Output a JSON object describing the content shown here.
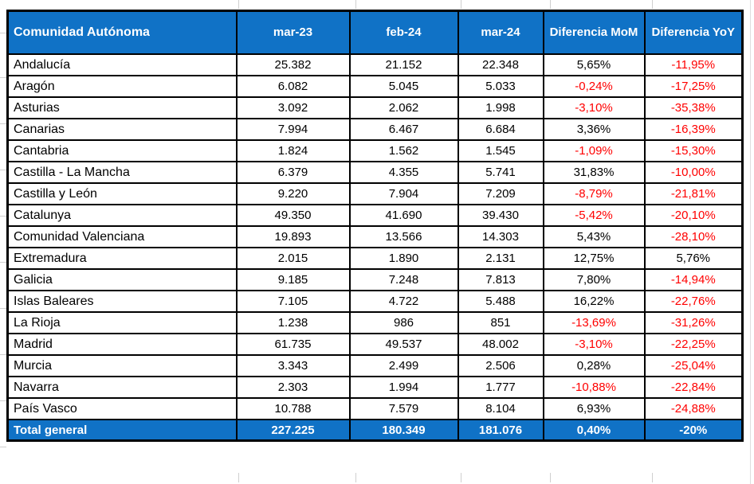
{
  "colors": {
    "header_bg": "#1072C6",
    "header_text": "#FFFFFF",
    "negative_text": "#FF0000",
    "positive_text": "#000000",
    "border": "#000000",
    "gridline_stub": "#CFCFCF"
  },
  "table": {
    "columns": [
      "Comunidad Autónoma",
      "mar-23",
      "feb-24",
      "mar-24",
      "Diferencia MoM",
      "Diferencia YoY"
    ],
    "rows": [
      {
        "name": "Andalucía",
        "mar23": "25.382",
        "feb24": "21.152",
        "mar24": "22.348",
        "mom": "5,65%",
        "yoy": "-11,95%"
      },
      {
        "name": "Aragón",
        "mar23": "6.082",
        "feb24": "5.045",
        "mar24": "5.033",
        "mom": "-0,24%",
        "yoy": "-17,25%"
      },
      {
        "name": "Asturias",
        "mar23": "3.092",
        "feb24": "2.062",
        "mar24": "1.998",
        "mom": "-3,10%",
        "yoy": "-35,38%"
      },
      {
        "name": "Canarias",
        "mar23": "7.994",
        "feb24": "6.467",
        "mar24": "6.684",
        "mom": "3,36%",
        "yoy": "-16,39%"
      },
      {
        "name": "Cantabria",
        "mar23": "1.824",
        "feb24": "1.562",
        "mar24": "1.545",
        "mom": "-1,09%",
        "yoy": "-15,30%"
      },
      {
        "name": "Castilla - La Mancha",
        "mar23": "6.379",
        "feb24": "4.355",
        "mar24": "5.741",
        "mom": "31,83%",
        "yoy": "-10,00%"
      },
      {
        "name": "Castilla y León",
        "mar23": "9.220",
        "feb24": "7.904",
        "mar24": "7.209",
        "mom": "-8,79%",
        "yoy": "-21,81%"
      },
      {
        "name": "Catalunya",
        "mar23": "49.350",
        "feb24": "41.690",
        "mar24": "39.430",
        "mom": "-5,42%",
        "yoy": "-20,10%"
      },
      {
        "name": "Comunidad Valenciana",
        "mar23": "19.893",
        "feb24": "13.566",
        "mar24": "14.303",
        "mom": "5,43%",
        "yoy": "-28,10%"
      },
      {
        "name": "Extremadura",
        "mar23": "2.015",
        "feb24": "1.890",
        "mar24": "2.131",
        "mom": "12,75%",
        "yoy": "5,76%"
      },
      {
        "name": "Galicia",
        "mar23": "9.185",
        "feb24": "7.248",
        "mar24": "7.813",
        "mom": "7,80%",
        "yoy": "-14,94%"
      },
      {
        "name": "Islas Baleares",
        "mar23": "7.105",
        "feb24": "4.722",
        "mar24": "5.488",
        "mom": "16,22%",
        "yoy": "-22,76%"
      },
      {
        "name": "La Rioja",
        "mar23": "1.238",
        "feb24": "986",
        "mar24": "851",
        "mom": "-13,69%",
        "yoy": "-31,26%"
      },
      {
        "name": "Madrid",
        "mar23": "61.735",
        "feb24": "49.537",
        "mar24": "48.002",
        "mom": "-3,10%",
        "yoy": "-22,25%"
      },
      {
        "name": "Murcia",
        "mar23": "3.343",
        "feb24": "2.499",
        "mar24": "2.506",
        "mom": "0,28%",
        "yoy": "-25,04%"
      },
      {
        "name": "Navarra",
        "mar23": "2.303",
        "feb24": "1.994",
        "mar24": "1.777",
        "mom": "-10,88%",
        "yoy": "-22,84%"
      },
      {
        "name": "País Vasco",
        "mar23": "10.788",
        "feb24": "7.579",
        "mar24": "8.104",
        "mom": "6,93%",
        "yoy": "-24,88%"
      }
    ],
    "total": {
      "name": "Total general",
      "mar23": "227.225",
      "feb24": "180.349",
      "mar24": "181.076",
      "mom": "0,40%",
      "yoy": "-20%"
    }
  }
}
